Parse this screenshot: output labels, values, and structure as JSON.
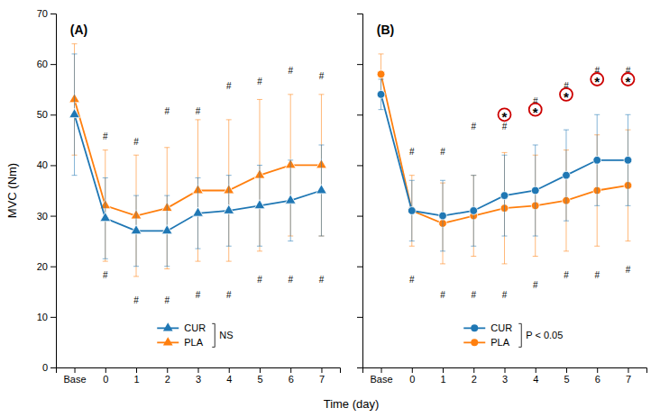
{
  "chart_data": [
    {
      "type": "line",
      "title": "(A)",
      "x_label": "Time (day)",
      "y_label": "MVC (Nm)",
      "categories": [
        "Base",
        "0",
        "1",
        "2",
        "3",
        "4",
        "5",
        "6",
        "7"
      ],
      "series": [
        {
          "name": "CUR",
          "marker": "triangle",
          "values": [
            50,
            29.5,
            27,
            27,
            30.5,
            31,
            32,
            33,
            35
          ],
          "errors": [
            12,
            8,
            7,
            7,
            7,
            7,
            8,
            8,
            9
          ]
        },
        {
          "name": "PLA",
          "marker": "triangle",
          "values": [
            53,
            32,
            30,
            31.5,
            35,
            35,
            38,
            40,
            40
          ],
          "errors": [
            11,
            11,
            12,
            12,
            14,
            14,
            15,
            14,
            14
          ]
        }
      ],
      "ylim": [
        0,
        70
      ],
      "yticks": [
        0,
        10,
        20,
        30,
        40,
        50,
        60,
        70
      ],
      "grid": false,
      "legend": "lower center",
      "annotations": [
        {
          "text": "NS"
        },
        {
          "text": "#",
          "x": "0",
          "y": 45
        },
        {
          "text": "#",
          "x": "1",
          "y": 44
        },
        {
          "text": "#",
          "x": "2",
          "y": 50
        },
        {
          "text": "#",
          "x": "3",
          "y": 50
        },
        {
          "text": "#",
          "x": "4",
          "y": 55
        },
        {
          "text": "#",
          "x": "5",
          "y": 56
        },
        {
          "text": "#",
          "x": "6",
          "y": 58
        },
        {
          "text": "#",
          "x": "7",
          "y": 57
        },
        {
          "text": "#",
          "x": "0",
          "y": 19
        },
        {
          "text": "#",
          "x": "1",
          "y": 14
        },
        {
          "text": "#",
          "x": "2",
          "y": 14
        },
        {
          "text": "#",
          "x": "3",
          "y": 15
        },
        {
          "text": "#",
          "x": "4",
          "y": 15
        },
        {
          "text": "#",
          "x": "5",
          "y": 18
        },
        {
          "text": "#",
          "x": "6",
          "y": 18
        },
        {
          "text": "#",
          "x": "7",
          "y": 18
        }
      ]
    },
    {
      "type": "line",
      "title": "(B)",
      "categories": [
        "Base",
        "0",
        "1",
        "2",
        "3",
        "4",
        "5",
        "6",
        "7"
      ],
      "series": [
        {
          "name": "CUR",
          "marker": "circle",
          "values": [
            54,
            31,
            30,
            31,
            34,
            35,
            38,
            41,
            41
          ],
          "errors": [
            3,
            6,
            7,
            7,
            8,
            9,
            9,
            9,
            9
          ]
        },
        {
          "name": "PLA",
          "marker": "circle",
          "values": [
            58,
            31,
            28.5,
            30,
            31.5,
            32,
            33,
            35,
            36
          ],
          "errors": [
            4,
            7,
            8,
            8,
            11,
            10,
            10,
            11,
            11
          ]
        }
      ],
      "ylim": [
        0,
        70
      ],
      "yticks": [
        0,
        10,
        20,
        30,
        40,
        50,
        60,
        70
      ],
      "grid": false,
      "legend": "lower center",
      "tick_labels": "x",
      "annotations": [
        {
          "text": "P < 0.05"
        },
        {
          "text": "#",
          "x": "0",
          "y": 42
        },
        {
          "text": "#",
          "x": "1",
          "y": 42
        },
        {
          "text": "#",
          "x": "2",
          "y": 47
        },
        {
          "text": "#",
          "x": "3",
          "y": 47
        },
        {
          "text": "#",
          "x": "4",
          "y": 52
        },
        {
          "text": "#",
          "x": "5",
          "y": 55
        },
        {
          "text": "#",
          "x": "6",
          "y": 58
        },
        {
          "text": "#",
          "x": "7",
          "y": 58
        },
        {
          "text": "#",
          "x": "0",
          "y": 18
        },
        {
          "text": "#",
          "x": "1",
          "y": 15
        },
        {
          "text": "#",
          "x": "2",
          "y": 15
        },
        {
          "text": "#",
          "x": "3",
          "y": 15
        },
        {
          "text": "#",
          "x": "4",
          "y": 17
        },
        {
          "text": "#",
          "x": "5",
          "y": 19
        },
        {
          "text": "#",
          "x": "6",
          "y": 19
        },
        {
          "text": "#",
          "x": "7",
          "y": 20
        },
        {
          "text": "*",
          "x": "3",
          "y": 50,
          "color": "#cc0000"
        },
        {
          "text": "*",
          "x": "4",
          "y": 51,
          "color": "#cc0000"
        },
        {
          "text": "*",
          "x": "5",
          "y": 54,
          "color": "#cc0000"
        },
        {
          "text": "*",
          "x": "6",
          "y": 57,
          "color": "#cc0000"
        },
        {
          "text": "*",
          "x": "7",
          "y": 57,
          "color": "#cc0000"
        }
      ]
    }
  ]
}
